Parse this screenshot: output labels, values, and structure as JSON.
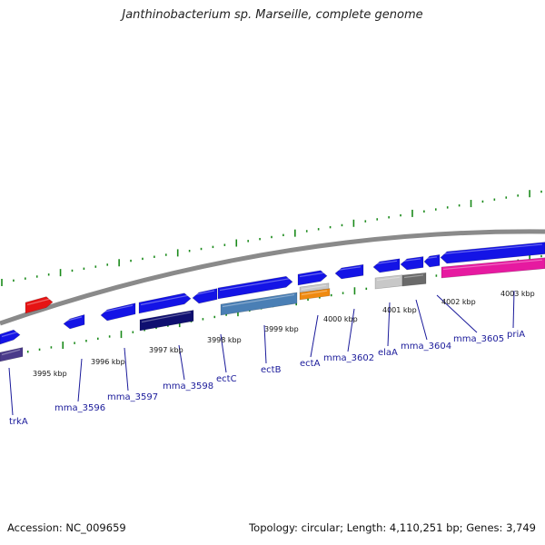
{
  "title": "Janthinobacterium sp. Marseille, complete genome",
  "colors": {
    "backbone": "#8a8a8a",
    "tick": "#1a8a1a",
    "label": "#1a1a9a",
    "gene_blue": "#1414e6",
    "gene_red": "#e61414",
    "gene_magenta": "#e61aa0",
    "gene_steel": "#4a7fb5",
    "gene_navy": "#0f0f70",
    "gene_orange": "#f08a10",
    "gene_lightgray": "#c8c8c8",
    "gene_darkgray": "#6a6a6a",
    "gene_purple": "#4a3a8a"
  },
  "ruler": {
    "unit": "kbp",
    "ticks": [
      {
        "label": "3995 kbp"
      },
      {
        "label": "3996 kbp"
      },
      {
        "label": "3997 kbp"
      },
      {
        "label": "3998 kbp"
      },
      {
        "label": "3999 kbp"
      },
      {
        "label": "4000 kbp"
      },
      {
        "label": "4001 kbp"
      },
      {
        "label": "4002 kbp"
      },
      {
        "label": "4003 kbp"
      }
    ]
  },
  "gene_labels": [
    {
      "name": "trkA"
    },
    {
      "name": "mma_3596"
    },
    {
      "name": "mma_3597"
    },
    {
      "name": "mma_3598"
    },
    {
      "name": "ectC"
    },
    {
      "name": "ectB"
    },
    {
      "name": "ectA"
    },
    {
      "name": "mma_3602"
    },
    {
      "name": "elaA"
    },
    {
      "name": "mma_3604"
    },
    {
      "name": "mma_3605"
    },
    {
      "name": "priA"
    }
  ],
  "footer": {
    "accession": "Accession: NC_009659",
    "stats": "Topology: circular; Length: 4,110,251 bp; Genes: 3,749"
  }
}
